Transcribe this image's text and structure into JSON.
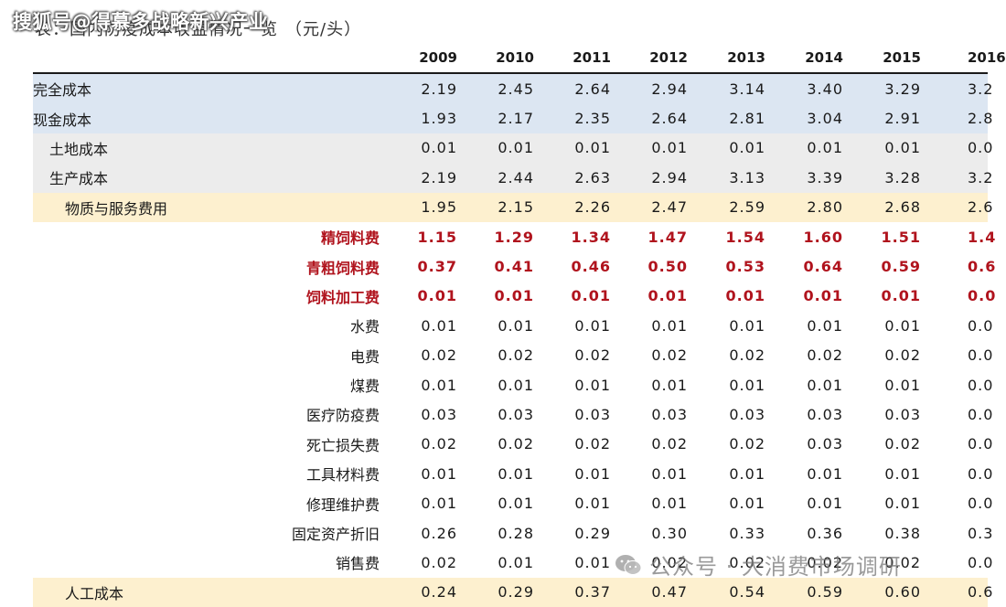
{
  "watermark_top": "搜狐号@得慕多战略新兴产业",
  "caption": {
    "title": "表：国内防疫成本收益情况一览",
    "unit": "（元/头）"
  },
  "header": [
    "2009",
    "2010",
    "2011",
    "2012",
    "2013",
    "2014",
    "2015",
    "2016"
  ],
  "rows": [
    {
      "label": "完全成本",
      "values": [
        "2.19",
        "2.45",
        "2.64",
        "2.94",
        "3.14",
        "3.40",
        "3.29",
        "3.2"
      ]
    },
    {
      "label": "现金成本",
      "values": [
        "1.93",
        "2.17",
        "2.35",
        "2.64",
        "2.81",
        "3.04",
        "2.91",
        "2.8"
      ]
    },
    {
      "label": "土地成本",
      "values": [
        "0.01",
        "0.01",
        "0.01",
        "0.01",
        "0.01",
        "0.01",
        "0.01",
        "0.0"
      ]
    },
    {
      "label": "生产成本",
      "values": [
        "2.19",
        "2.44",
        "2.63",
        "2.94",
        "3.13",
        "3.39",
        "3.28",
        "3.2"
      ]
    },
    {
      "label": "物质与服务费用",
      "values": [
        "1.95",
        "2.15",
        "2.26",
        "2.47",
        "2.59",
        "2.80",
        "2.68",
        "2.6"
      ]
    },
    {
      "label": "精饲料费",
      "values": [
        "1.15",
        "1.29",
        "1.34",
        "1.47",
        "1.54",
        "1.60",
        "1.51",
        "1.4"
      ]
    },
    {
      "label": "青粗饲料费",
      "values": [
        "0.37",
        "0.41",
        "0.46",
        "0.50",
        "0.53",
        "0.64",
        "0.59",
        "0.6"
      ]
    },
    {
      "label": "饲料加工费",
      "values": [
        "0.01",
        "0.01",
        "0.01",
        "0.01",
        "0.01",
        "0.01",
        "0.01",
        "0.0"
      ]
    },
    {
      "label": "水费",
      "values": [
        "0.01",
        "0.01",
        "0.01",
        "0.01",
        "0.01",
        "0.01",
        "0.01",
        "0.0"
      ]
    },
    {
      "label": "电费",
      "values": [
        "0.02",
        "0.02",
        "0.02",
        "0.02",
        "0.02",
        "0.02",
        "0.02",
        "0.0"
      ]
    },
    {
      "label": "煤费",
      "values": [
        "0.01",
        "0.01",
        "0.01",
        "0.01",
        "0.01",
        "0.01",
        "0.01",
        "0.0"
      ]
    },
    {
      "label": "医疗防疫费",
      "values": [
        "0.03",
        "0.03",
        "0.03",
        "0.03",
        "0.03",
        "0.03",
        "0.03",
        "0.0"
      ]
    },
    {
      "label": "死亡损失费",
      "values": [
        "0.02",
        "0.02",
        "0.02",
        "0.02",
        "0.02",
        "0.03",
        "0.02",
        "0.0"
      ]
    },
    {
      "label": "工具材料费",
      "values": [
        "0.01",
        "0.01",
        "0.01",
        "0.01",
        "0.01",
        "0.01",
        "0.01",
        "0.0"
      ]
    },
    {
      "label": "修理维护费",
      "values": [
        "0.01",
        "0.01",
        "0.01",
        "0.01",
        "0.01",
        "0.01",
        "0.01",
        "0.0"
      ]
    },
    {
      "label": "固定资产折旧",
      "values": [
        "0.26",
        "0.28",
        "0.29",
        "0.30",
        "0.33",
        "0.36",
        "0.38",
        "0.3"
      ]
    },
    {
      "label": "销售费",
      "values": [
        "0.02",
        "0.01",
        "0.01",
        "0.02",
        "0.02",
        "0.02",
        "0.02",
        "0.0"
      ]
    },
    {
      "label": "人工成本",
      "values": [
        "0.24",
        "0.29",
        "0.37",
        "0.47",
        "0.54",
        "0.59",
        "0.60",
        "0.6"
      ]
    }
  ],
  "watermark_bottom": "公众号 · 大消费市场调研",
  "colors": {
    "blue_band": "#dce6f2",
    "gray_band": "#ececec",
    "yellow_band": "#fdf0cf",
    "highlight_red": "#b0131d"
  }
}
